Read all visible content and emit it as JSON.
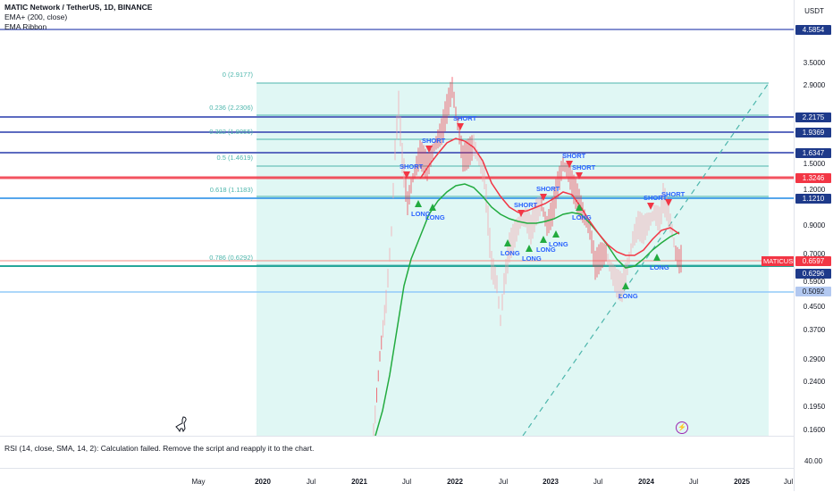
{
  "legend": {
    "title": "MATIC Network / TetherUS, 1D, BINANCE",
    "ind1": "EMA+ (200, close)",
    "ind2": "EMA Ribbon"
  },
  "axis": {
    "currency": "USDT",
    "ticks": [
      "3.5000",
      "2.9000",
      "1.5000",
      "1.2000",
      "0.9000",
      "0.7000",
      "0.5900",
      "0.4500",
      "0.3700",
      "0.2900",
      "0.2400",
      "0.1950",
      "0.1600"
    ],
    "rsi_tick": "40.00"
  },
  "price_tags": [
    {
      "text": "4.5854",
      "color": "#1e3a8a"
    },
    {
      "text": "2.2175",
      "color": "#1e3a8a"
    },
    {
      "text": "1.9369",
      "color": "#1e3a8a"
    },
    {
      "text": "1.6347",
      "color": "#1e3a8a"
    },
    {
      "text": "1.3246",
      "color": "#f23645"
    },
    {
      "text": "1.1210",
      "color": "#1e3a8a"
    },
    {
      "text": "0.6597",
      "color": "#f23645"
    },
    {
      "text": "0.6296",
      "color": "#1e3a8a"
    },
    {
      "text": "0.5092",
      "color": "#b2c8f0"
    }
  ],
  "symbol_tag": "MATICUSDT",
  "fib_levels": [
    {
      "label": "0 (2.9177)"
    },
    {
      "label": "0.236 (2.2306)"
    },
    {
      "label": "0.382 (1.8055)"
    },
    {
      "label": "0.5 (1.4619)"
    },
    {
      "label": "0.618 (1.1183)"
    },
    {
      "label": "0.786 (0.6292)"
    }
  ],
  "signals": {
    "short": "SHORT",
    "long": "LONG"
  },
  "rsi_message": "RSI (14, close, SMA, 14, 2): Calculation failed. Remove the script and reapply it to the chart.",
  "time_axis": [
    {
      "text": "May",
      "bold": false
    },
    {
      "text": "2020",
      "bold": true
    },
    {
      "text": "Jul",
      "bold": false
    },
    {
      "text": "2021",
      "bold": true
    },
    {
      "text": "Jul",
      "bold": false
    },
    {
      "text": "2022",
      "bold": true
    },
    {
      "text": "Jul",
      "bold": false
    },
    {
      "text": "2023",
      "bold": true
    },
    {
      "text": "Jul",
      "bold": false
    },
    {
      "text": "2024",
      "bold": true
    },
    {
      "text": "Jul",
      "bold": false
    },
    {
      "text": "2025",
      "bold": true
    },
    {
      "text": "Jul",
      "bold": false
    }
  ],
  "colors": {
    "fib_fill": "#e0f7f4",
    "fib_line": "#4db6ac",
    "blue_line": "#5c6bc0",
    "red_line": "#f23645",
    "ema_green": "#22ab3f",
    "ema_red": "#f23645"
  },
  "icons": [
    "dinosaur-icon",
    "lightning-icon"
  ]
}
